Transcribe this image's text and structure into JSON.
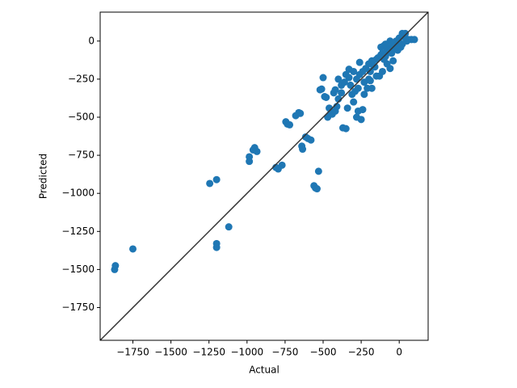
{
  "chart_data": {
    "type": "scatter",
    "xlabel": "Actual",
    "ylabel": "Predicted",
    "color": "#1f77b4",
    "identity_line": true,
    "x": [
      -1870,
      -1865,
      -1750,
      -1200,
      -1200,
      -1120,
      -1245,
      -1200,
      -985,
      -985,
      -960,
      -950,
      -935,
      -810,
      -795,
      -770,
      -745,
      -735,
      -720,
      -680,
      -660,
      -650,
      -640,
      -635,
      -615,
      -600,
      -580,
      -560,
      -550,
      -540,
      -530,
      -520,
      -510,
      -500,
      -490,
      -480,
      -470,
      -460,
      -450,
      -440,
      -430,
      -420,
      -410,
      -400,
      -380,
      -370,
      -350,
      -340,
      -330,
      -320,
      -310,
      -300,
      -290,
      -280,
      -270,
      -260,
      -250,
      -240,
      -230,
      -210,
      -200,
      -190,
      -180,
      -170,
      -150,
      -130,
      -110,
      -100,
      -90,
      -80,
      -70,
      -60,
      -50,
      -40,
      -30,
      -20,
      -10,
      0,
      10,
      20,
      30,
      40,
      50,
      60,
      80,
      100,
      -350,
      -330,
      -300,
      -280,
      -260,
      -240,
      -220,
      -200,
      -180,
      -160,
      -140,
      -120,
      -100,
      -80,
      -60,
      -40,
      -20,
      0,
      20,
      40,
      -400,
      -380,
      -360,
      -420,
      -270,
      -230,
      -190,
      -150,
      -120,
      -60,
      -110,
      -90,
      -50
    ],
    "y": [
      -1500,
      -1475,
      -1365,
      -1330,
      -1355,
      -1220,
      -935,
      -910,
      -760,
      -790,
      -715,
      -700,
      -725,
      -830,
      -840,
      -815,
      -530,
      -545,
      -550,
      -490,
      -470,
      -475,
      -690,
      -710,
      -630,
      -640,
      -650,
      -950,
      -965,
      -970,
      -855,
      -320,
      -315,
      -240,
      -365,
      -370,
      -500,
      -440,
      -475,
      -480,
      -340,
      -460,
      -430,
      -380,
      -340,
      -570,
      -575,
      -440,
      -185,
      -290,
      -350,
      -400,
      -330,
      -500,
      -460,
      -140,
      -515,
      -450,
      -270,
      -310,
      -250,
      -200,
      -310,
      -160,
      -120,
      -230,
      -200,
      -30,
      -100,
      -150,
      -50,
      0,
      -80,
      -130,
      -20,
      0,
      -60,
      20,
      -40,
      50,
      30,
      50,
      0,
      10,
      10,
      10,
      -220,
      -240,
      -200,
      -250,
      -220,
      -200,
      -180,
      -150,
      -130,
      -170,
      -110,
      -90,
      -120,
      -60,
      -70,
      -40,
      -30,
      -10,
      -20,
      20,
      -250,
      -290,
      -270,
      -320,
      -310,
      -350,
      -260,
      -230,
      -40,
      -180,
      -80,
      -20,
      -10
    ],
    "xlim": [
      -1965,
      190
    ],
    "ylim": [
      -1965,
      190
    ],
    "xticks": [
      {
        "value": -1750,
        "label": "−1750"
      },
      {
        "value": -1500,
        "label": "−1500"
      },
      {
        "value": -1250,
        "label": "−1250"
      },
      {
        "value": -1000,
        "label": "−1000"
      },
      {
        "value": -750,
        "label": "−750"
      },
      {
        "value": -500,
        "label": "−500"
      },
      {
        "value": -250,
        "label": "−250"
      },
      0
    ],
    "yticks": [
      {
        "value": -1750,
        "label": "−1750"
      },
      {
        "value": -1500,
        "label": "−1500"
      },
      {
        "value": -1250,
        "label": "−1250"
      },
      {
        "value": -1000,
        "label": "−1000"
      },
      {
        "value": -750,
        "label": "−750"
      },
      {
        "value": -500,
        "label": "−500"
      },
      {
        "value": -250,
        "label": "−250"
      },
      0
    ]
  }
}
